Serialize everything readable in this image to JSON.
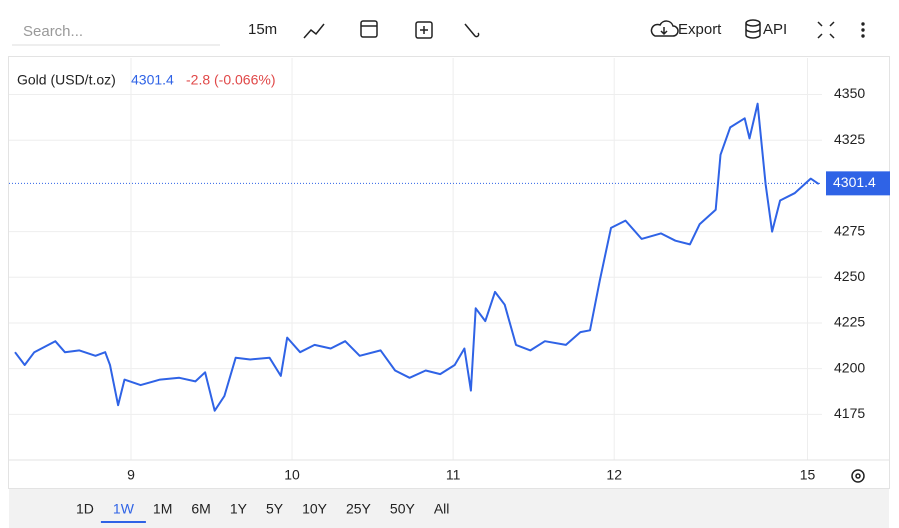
{
  "toolbar": {
    "search_placeholder": "Search...",
    "interval": "15m",
    "export": "Export",
    "api": "API"
  },
  "chart_data": {
    "type": "line",
    "series": [
      {
        "name": "Gold (USD/t.oz)",
        "color": "#2f63e6",
        "values": [
          4209,
          4202,
          4209,
          4215,
          4209,
          4210,
          4207,
          4209,
          4202,
          4180,
          4194,
          4191,
          4194,
          4195,
          4193,
          4198,
          4177,
          4185,
          4206,
          4205,
          4206,
          4196,
          4217,
          4209,
          4213,
          4211,
          4215,
          4207,
          4210,
          4199,
          4195,
          4199,
          4197,
          4202,
          4211,
          4188,
          4233,
          4226,
          4242,
          4235,
          4213,
          4210,
          4215,
          4213,
          4220,
          4221,
          4248,
          4277,
          4281,
          4271,
          4274,
          4270,
          4268,
          4279,
          4287,
          4317,
          4332,
          4337,
          4326,
          4345,
          4301,
          4275,
          4292,
          4296,
          4304,
          4301
        ]
      }
    ],
    "x": [
      -0.72,
      -0.66,
      -0.6,
      -0.47,
      -0.41,
      -0.32,
      -0.22,
      -0.16,
      -0.13,
      -0.08,
      -0.04,
      0.06,
      0.18,
      0.3,
      0.4,
      0.46,
      0.52,
      0.58,
      0.65,
      0.74,
      0.86,
      0.93,
      0.97,
      1.05,
      1.14,
      1.24,
      1.33,
      1.42,
      1.55,
      1.64,
      1.73,
      1.83,
      1.92,
      2.01,
      2.07,
      2.11,
      2.14,
      2.2,
      2.26,
      2.32,
      2.39,
      2.48,
      2.57,
      2.7,
      2.79,
      2.85,
      2.91,
      2.98,
      3.07,
      3.17,
      3.29,
      3.38,
      3.47,
      3.53,
      3.63,
      3.66,
      3.72,
      3.81,
      3.84,
      3.89,
      3.94,
      3.98,
      4.03,
      4.12,
      4.22,
      4.27
    ],
    "xlim": [
      -0.72,
      4.29
    ],
    "xticks": [
      {
        "value": 0,
        "label": "9"
      },
      {
        "value": 1,
        "label": "10"
      },
      {
        "value": 2,
        "label": "11"
      },
      {
        "value": 3,
        "label": "12"
      },
      {
        "value": 4.2,
        "label": "15"
      }
    ],
    "ylim": [
      4150,
      4370
    ],
    "yticks": [
      4175,
      4200,
      4225,
      4250,
      4275,
      4325,
      4350
    ],
    "grid": true,
    "last_price": 4301.4,
    "change_label": "-2.8 (-0.066%)"
  },
  "ranges": {
    "items": [
      "1D",
      "1W",
      "1M",
      "6M",
      "1Y",
      "5Y",
      "10Y",
      "25Y",
      "50Y",
      "All"
    ],
    "active": "1W"
  }
}
